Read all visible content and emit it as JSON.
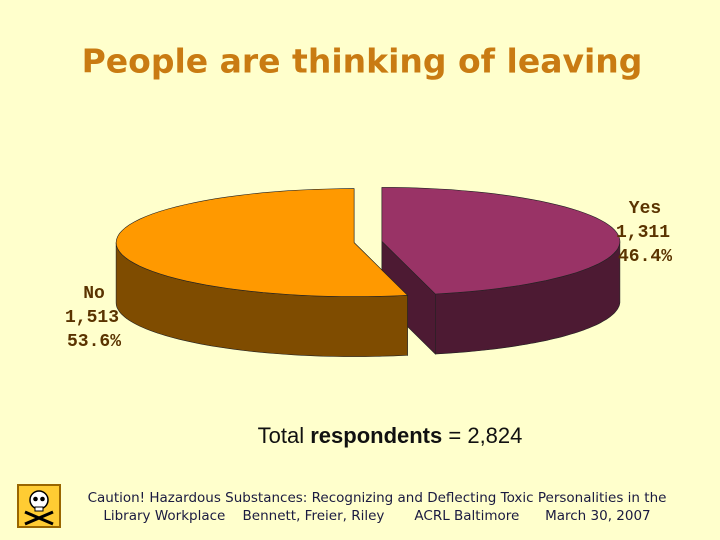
{
  "chart_data": {
    "type": "pie",
    "title": "People are thinking of leaving",
    "categories": [
      "Yes",
      "No"
    ],
    "values": [
      46.4,
      53.6
    ],
    "value_labels": [
      "46.4%",
      "53.6%"
    ],
    "counts": [
      1311,
      1513
    ],
    "count_labels": [
      "1,311",
      "1,513"
    ],
    "colors": [
      "#993366",
      "#ff9900"
    ],
    "side_colors": [
      "#4d1a33",
      "#7f4c00"
    ],
    "total": {
      "prefix": "Total",
      "emphasis": "respondents",
      "suffix": "= 2,824"
    }
  },
  "footer": {
    "line1": "Caution! Hazardous Substances: Recognizing and Deflecting Toxic Personalities in the",
    "line2": "Library Workplace    Bennett, Freier, Riley       ACRL Baltimore      March 30, 2007"
  }
}
